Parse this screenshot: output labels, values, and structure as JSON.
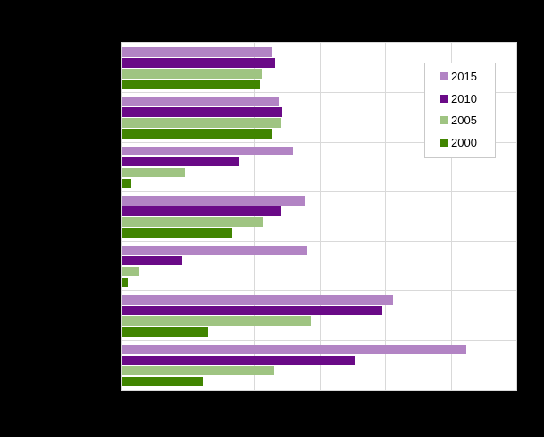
{
  "canvas": {
    "background_color": "#000000",
    "plot_background_color": "#ffffff",
    "gridline_color": "#d9d9d9"
  },
  "legend": {
    "position": "top-right-inside-plot",
    "entries": [
      {
        "label": "2015",
        "color": "#b284c4"
      },
      {
        "label": "2010",
        "color": "#6a0a87"
      },
      {
        "label": "2005",
        "color": "#9fc482"
      },
      {
        "label": "2000",
        "color": "#418501"
      }
    ]
  },
  "chart_data": {
    "type": "bar",
    "orientation": "horizontal",
    "grid": true,
    "legend_position": "top-right-inside",
    "axis_tick_labels_visible": false,
    "category_labels_visible": false,
    "x_gridline_divisions": 6,
    "values_unit": "percent_of_x_axis_length",
    "xlim_pct": [
      0,
      100
    ],
    "categories": [
      "",
      "",
      "",
      "",
      "",
      "",
      ""
    ],
    "series": [
      {
        "name": "2015",
        "color": "#b284c4",
        "values": [
          38.1,
          39.7,
          43.3,
          46.3,
          47.0,
          68.8,
          87.4
        ]
      },
      {
        "name": "2010",
        "color": "#6a0a87",
        "values": [
          38.8,
          40.6,
          29.8,
          40.4,
          15.1,
          65.9,
          58.9
        ]
      },
      {
        "name": "2005",
        "color": "#9fc482",
        "values": [
          35.4,
          40.4,
          15.8,
          35.7,
          4.3,
          47.9,
          38.6
        ]
      },
      {
        "name": "2000",
        "color": "#418501",
        "values": [
          35.0,
          37.9,
          2.3,
          27.8,
          1.4,
          21.7,
          20.5
        ]
      }
    ]
  }
}
